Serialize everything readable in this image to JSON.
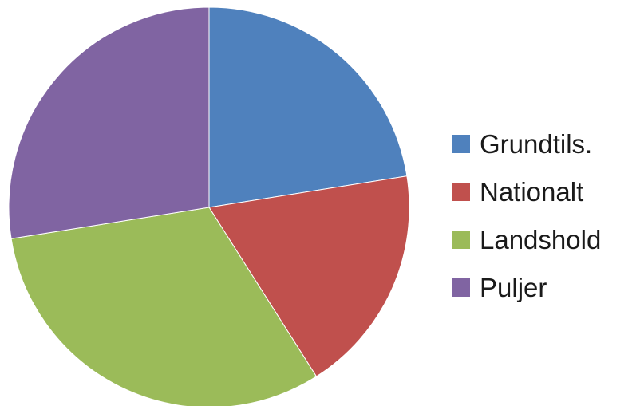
{
  "chart_data": {
    "type": "pie",
    "title": "",
    "legend_position": "right",
    "start_angle_deg": 0,
    "direction": "clockwise",
    "slices": [
      {
        "label": "Grundtils.",
        "value": 22.5,
        "color": "#4F81BD"
      },
      {
        "label": "Nationalt",
        "value": 18.5,
        "color": "#C0504D"
      },
      {
        "label": "Landshold",
        "value": 31.5,
        "color": "#9BBB59"
      },
      {
        "label": "Puljer",
        "value": 27.5,
        "color": "#8064A2"
      }
    ]
  }
}
